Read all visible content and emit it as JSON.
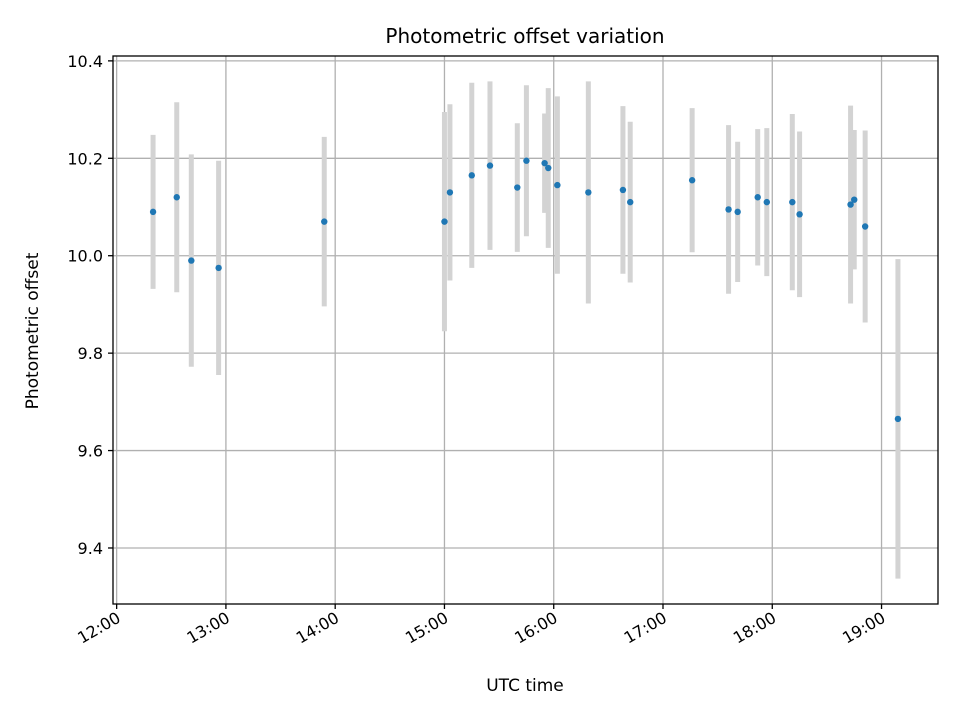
{
  "chart_data": {
    "type": "scatter",
    "title": "Photometric offset variation",
    "xlabel": "UTC time",
    "ylabel": "Photometric offset",
    "x_axis": {
      "kind": "time",
      "range": [
        "11:58",
        "19:31"
      ],
      "ticks": [
        "12:00",
        "13:00",
        "14:00",
        "15:00",
        "16:00",
        "17:00",
        "18:00",
        "19:00"
      ]
    },
    "y_axis": {
      "range": [
        9.285,
        10.41
      ],
      "ticks": [
        9.4,
        9.6,
        9.8,
        10.0,
        10.2,
        10.4
      ],
      "tick_labels": [
        "9.4",
        "9.6",
        "9.8",
        "10.0",
        "10.2",
        "10.4"
      ]
    },
    "grid": true,
    "legend": "none",
    "colors": {
      "points": "#1f77b4",
      "errorbars": "#d3d3d3",
      "grid": "#b0b0b0"
    },
    "series": [
      {
        "x": [
          "12:20",
          "12:33",
          "12:41",
          "12:56",
          "13:54",
          "15:00",
          "15:03",
          "15:15",
          "15:25",
          "15:40",
          "15:45",
          "15:55",
          "15:57",
          "16:02",
          "16:19",
          "16:38",
          "16:42",
          "17:16",
          "17:36",
          "17:41",
          "17:52",
          "17:57",
          "18:11",
          "18:15",
          "18:43",
          "18:45",
          "18:51",
          "19:09"
        ],
        "y": [
          10.09,
          10.12,
          9.99,
          9.975,
          10.07,
          10.07,
          10.13,
          10.165,
          10.185,
          10.14,
          10.195,
          10.19,
          10.18,
          10.145,
          10.13,
          10.135,
          10.11,
          10.155,
          10.095,
          10.09,
          10.12,
          10.11,
          10.11,
          10.085,
          10.105,
          10.115,
          10.06,
          9.665
        ],
        "yerr": [
          0.158,
          0.195,
          0.218,
          0.22,
          0.174,
          0.225,
          0.181,
          0.19,
          0.173,
          0.132,
          0.155,
          0.102,
          0.164,
          0.182,
          0.228,
          0.172,
          0.165,
          0.148,
          0.173,
          0.144,
          0.14,
          0.152,
          0.181,
          0.17,
          0.203,
          0.143,
          0.197,
          0.328
        ]
      }
    ]
  }
}
